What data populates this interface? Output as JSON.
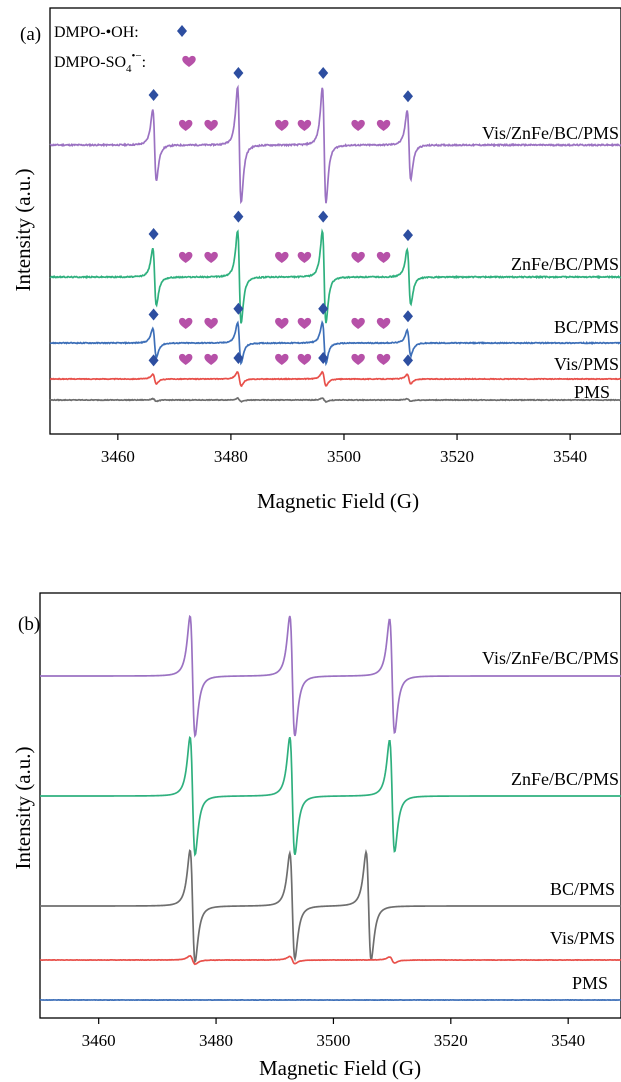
{
  "colors": {
    "purple": "#9b72c2",
    "green": "#2fb07e",
    "blue": "#3d6fb8",
    "red": "#e8504a",
    "gray": "#6e6e6e",
    "diamond": "#2d4ea0",
    "heart": "#b651a8"
  },
  "chart_data": [
    {
      "type": "line",
      "panel_label": "(a)",
      "xlabel": "Magnetic Field (G)",
      "ylabel": "Intensity (a.u.)",
      "xlim": [
        3448,
        3549
      ],
      "x_ticks": [
        3460,
        3480,
        3500,
        3520,
        3540
      ],
      "x_tick_labels": [
        "3460",
        "3480",
        "3500",
        "3520",
        "3540"
      ],
      "grid": false,
      "legend": {
        "position": "top-left",
        "oh_label": "DMPO-•OH:",
        "so4_label_main": "DMPO-SO",
        "so4_label_sub": "4",
        "so4_label_sup": "•−",
        "so4_label_colon": ":",
        "oh_symbol": "diamond",
        "so4_symbol": "heart"
      },
      "peak_centers": [
        3466.5,
        3481.5,
        3496.5,
        3511.5
      ],
      "so4_marker_x": [
        3472.0,
        3476.5,
        3489.0,
        3493.0,
        3502.5,
        3507.0
      ],
      "series": [
        {
          "name": "Vis/ZnFe/BC/PMS",
          "color_key": "purple",
          "amplitudes": [
            0.62,
            1.0,
            1.0,
            0.6
          ],
          "noise": 0.012,
          "oh_markers": true,
          "so4_markers": true
        },
        {
          "name": "ZnFe/BC/PMS",
          "color_key": "green",
          "amplitudes": [
            0.5,
            0.8,
            0.8,
            0.48
          ],
          "noise": 0.01,
          "oh_markers": true,
          "so4_markers": true
        },
        {
          "name": "BC/PMS",
          "color_key": "blue",
          "amplitudes": [
            0.25,
            0.35,
            0.35,
            0.22
          ],
          "noise": 0.008,
          "oh_markers": true,
          "so4_markers": true
        },
        {
          "name": "Vis/PMS",
          "color_key": "red",
          "amplitudes": [
            0.08,
            0.12,
            0.12,
            0.08
          ],
          "noise": 0.006,
          "oh_markers": true,
          "so4_markers": true
        },
        {
          "name": "PMS",
          "color_key": "gray",
          "amplitudes": [
            0.02,
            0.03,
            0.03,
            0.02
          ],
          "noise": 0.006,
          "oh_markers": false,
          "so4_markers": false
        }
      ]
    },
    {
      "type": "line",
      "panel_label": "(b)",
      "xlabel": "Magnetic Field (G)",
      "ylabel": "Intensity (a.u.)",
      "xlim": [
        3450,
        3549
      ],
      "x_ticks": [
        3460,
        3480,
        3500,
        3520,
        3540
      ],
      "x_tick_labels": [
        "3460",
        "3480",
        "3500",
        "3520",
        "3540"
      ],
      "grid": false,
      "series": [
        {
          "name": "Vis/ZnFe/BC/PMS",
          "color_key": "purple",
          "peak_centers": [
            3476.0,
            3493.0,
            3510.0
          ],
          "amplitudes": [
            1.0,
            1.0,
            0.95
          ],
          "noise": 0.0
        },
        {
          "name": "ZnFe/BC/PMS",
          "color_key": "green",
          "peak_centers": [
            3476.0,
            3493.0,
            3510.0
          ],
          "amplitudes": [
            0.98,
            0.98,
            0.93
          ],
          "noise": 0.0
        },
        {
          "name": "BC/PMS",
          "color_key": "gray",
          "peak_centers": [
            3476.0,
            3493.0,
            3506.0
          ],
          "amplitudes": [
            0.93,
            0.88,
            0.9
          ],
          "noise": 0.0
        },
        {
          "name": "Vis/PMS",
          "color_key": "red",
          "peak_centers": [
            3476.0,
            3493.0,
            3510.0
          ],
          "amplitudes": [
            0.07,
            0.06,
            0.05
          ],
          "noise": 0.003
        },
        {
          "name": "PMS",
          "color_key": "blue",
          "peak_centers": [
            3476.0,
            3493.0,
            3510.0
          ],
          "amplitudes": [
            0.0,
            0.0,
            0.0
          ],
          "noise": 0.002
        }
      ]
    }
  ]
}
